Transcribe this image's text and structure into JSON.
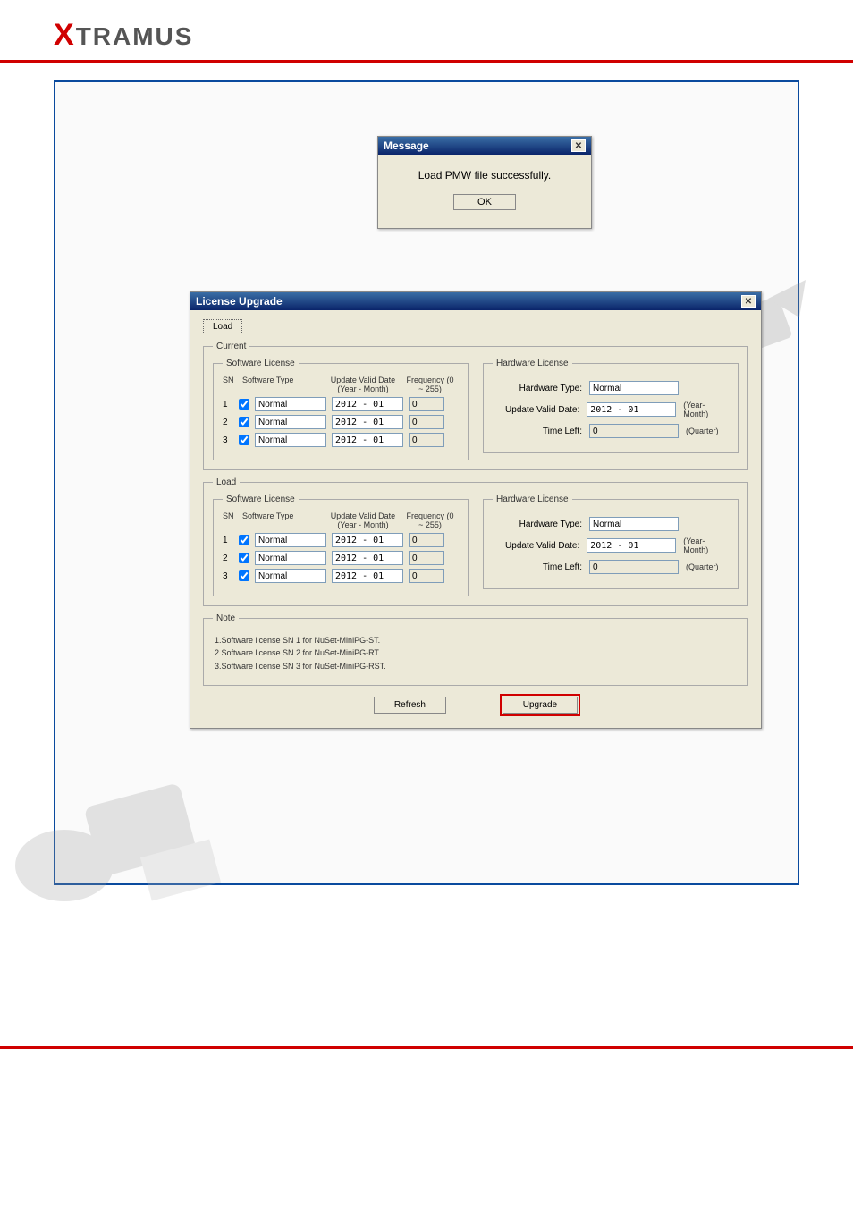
{
  "brand": {
    "x": "X",
    "rest": "TRAMUS"
  },
  "message_dialog": {
    "title": "Message",
    "body": "Load PMW file successfully.",
    "ok": "OK"
  },
  "license_window": {
    "title": "License Upgrade",
    "load_btn": "Load",
    "current": {
      "legend": "Current",
      "sw": {
        "legend": "Software License",
        "head_sn": "SN",
        "head_type": "Software Type",
        "head_date": "Update Valid Date (Year - Month)",
        "head_freq": "Frequency (0 ~ 255)",
        "rows": [
          {
            "sn": "1",
            "checked": true,
            "type": "Normal",
            "date": "2012 - 01",
            "freq": "0"
          },
          {
            "sn": "2",
            "checked": true,
            "type": "Normal",
            "date": "2012 - 01",
            "freq": "0"
          },
          {
            "sn": "3",
            "checked": true,
            "type": "Normal",
            "date": "2012 - 01",
            "freq": "0"
          }
        ]
      },
      "hw": {
        "legend": "Hardware License",
        "type_label": "Hardware Type:",
        "type_value": "Normal",
        "date_label": "Update Valid Date:",
        "date_value": "2012 - 01",
        "date_suffix": "(Year-Month)",
        "time_label": "Time Left:",
        "time_value": "0",
        "time_suffix": "(Quarter)"
      }
    },
    "load": {
      "legend": "Load",
      "sw": {
        "legend": "Software License",
        "head_sn": "SN",
        "head_type": "Software Type",
        "head_date": "Update Valid Date (Year - Month)",
        "head_freq": "Frequency (0 ~ 255)",
        "rows": [
          {
            "sn": "1",
            "checked": true,
            "type": "Normal",
            "date": "2012 - 01",
            "freq": "0"
          },
          {
            "sn": "2",
            "checked": true,
            "type": "Normal",
            "date": "2012 - 01",
            "freq": "0"
          },
          {
            "sn": "3",
            "checked": true,
            "type": "Normal",
            "date": "2012 - 01",
            "freq": "0"
          }
        ]
      },
      "hw": {
        "legend": "Hardware License",
        "type_label": "Hardware Type:",
        "type_value": "Normal",
        "date_label": "Update Valid Date:",
        "date_value": "2012 - 01",
        "date_suffix": "(Year-Month)",
        "time_label": "Time Left:",
        "time_value": "0",
        "time_suffix": "(Quarter)"
      }
    },
    "note": {
      "legend": "Note",
      "lines": [
        "1.Software license SN 1 for NuSet-MiniPG-ST.",
        "2.Software license SN 2 for NuSet-MiniPG-RT.",
        "3.Software license SN 3 for NuSet-MiniPG-RST."
      ]
    },
    "refresh_btn": "Refresh",
    "upgrade_btn": "Upgrade"
  }
}
